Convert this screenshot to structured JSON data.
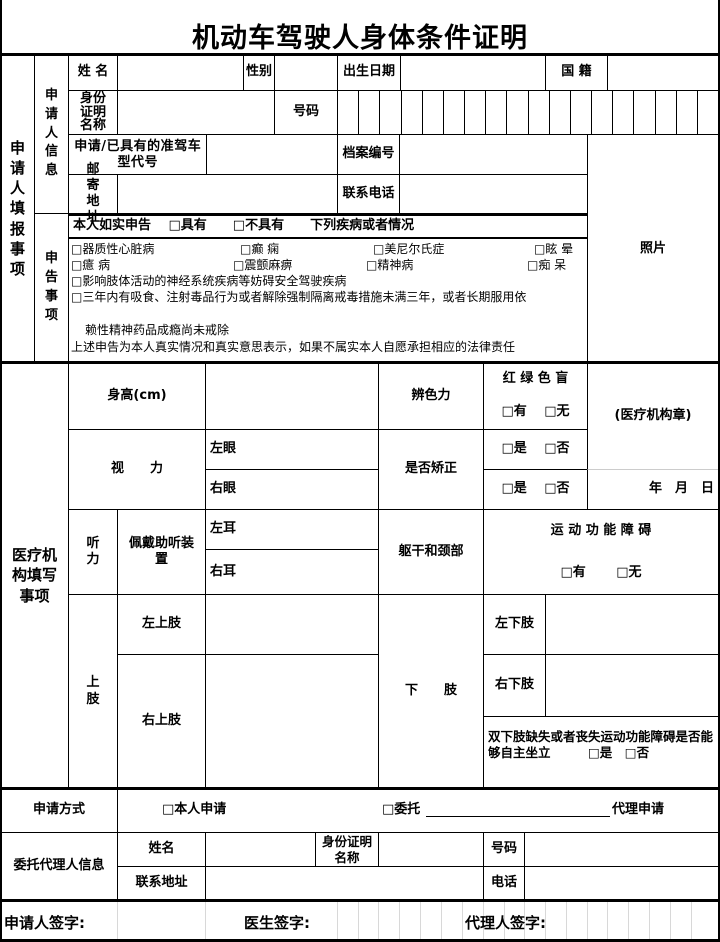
{
  "title": "机动车驾驶人身体条件证明",
  "applicant_section": {
    "label": "申请人填报事项",
    "info_label": "申请人信息",
    "name_label": "姓 名",
    "gender_label": "性别",
    "birth_label": "出生日期",
    "nationality_label": "国 籍",
    "id_doc_label": "身份证明名称",
    "id_number_label": "号码",
    "license_type_label": "申 请 / 已 具 有 的 准 驾 车 型 代 号",
    "file_number_label": "档案编号",
    "mail_address_label": "邮寄地址",
    "phone_label": "联系电话",
    "photo_label": "照片",
    "declare_label": "申告事项",
    "declare_header": "本人如实申告　 □具有　　□不具有　　下列疾病或者情况",
    "conditions": [
      "□器质性心脏病",
      "□癫  痫",
      "□美尼尔氏症",
      "□眩  晕",
      "□癔  病",
      "□震颤麻痹",
      "□精神病",
      "□痴  呆"
    ],
    "condition_line_1": "□影响肢体活动的神经系统疾病等妨碍安全驾驶疾病",
    "condition_line_2": "□三年内有吸食、注射毒品行为或者解除强制隔离戒毒措施未满三年，或者长期服用依",
    "condition_line_3": "赖性精神药品成瘾尚未戒除",
    "statement": "上述申告为本人真实情况和真实意思表示，如果不属实本人自愿承担相应的法律责任"
  },
  "medical_section": {
    "label": "医疗机构填写事项",
    "height_label": "身高(cm)",
    "color_vision_label": "辨色力",
    "color_blind_label": "红 绿 色 盲",
    "color_blind_options": "□有　 □无",
    "stamp_label": "(医疗机构章)",
    "vision_label": "视　　力",
    "left_eye": "左眼",
    "right_eye": "右眼",
    "corrected_label": "是否矫正",
    "yes_no": "□是　 □否",
    "date_label": "年　月　日",
    "hearing_label": "听　　力",
    "hearing_aid_label": "佩戴助听装置",
    "left_ear": "左耳",
    "right_ear": "右耳",
    "trunk_neck_label": "躯干和颈部",
    "motor_label": "运 动 功 能 障 碍",
    "motor_options": "□有　　 □无",
    "upper_limb_label": "上肢",
    "left_upper": "左上肢",
    "right_upper": "右上肢",
    "lower_limb_label": "下　　肢",
    "left_lower": "左下肢",
    "right_lower": "右下肢",
    "both_lower_text": "双下肢缺失或者丧失运动功能障碍是否能够自主坐立　　　□是　□否"
  },
  "application": {
    "method_label": "申请方式",
    "self_option": "□本人申请",
    "delegate_option": "□委托",
    "delegate_suffix": "代理申请",
    "agent_info_label": "委托代理人信息",
    "agent_name_label": "姓名",
    "agent_id_doc_label": "身份证明名称",
    "agent_number_label": "号码",
    "agent_address_label": "联系地址",
    "agent_phone_label": "电话"
  },
  "signatures": {
    "applicant": "申请人签字:",
    "doctor": "医生签字:",
    "agent": "代理人签字:"
  }
}
